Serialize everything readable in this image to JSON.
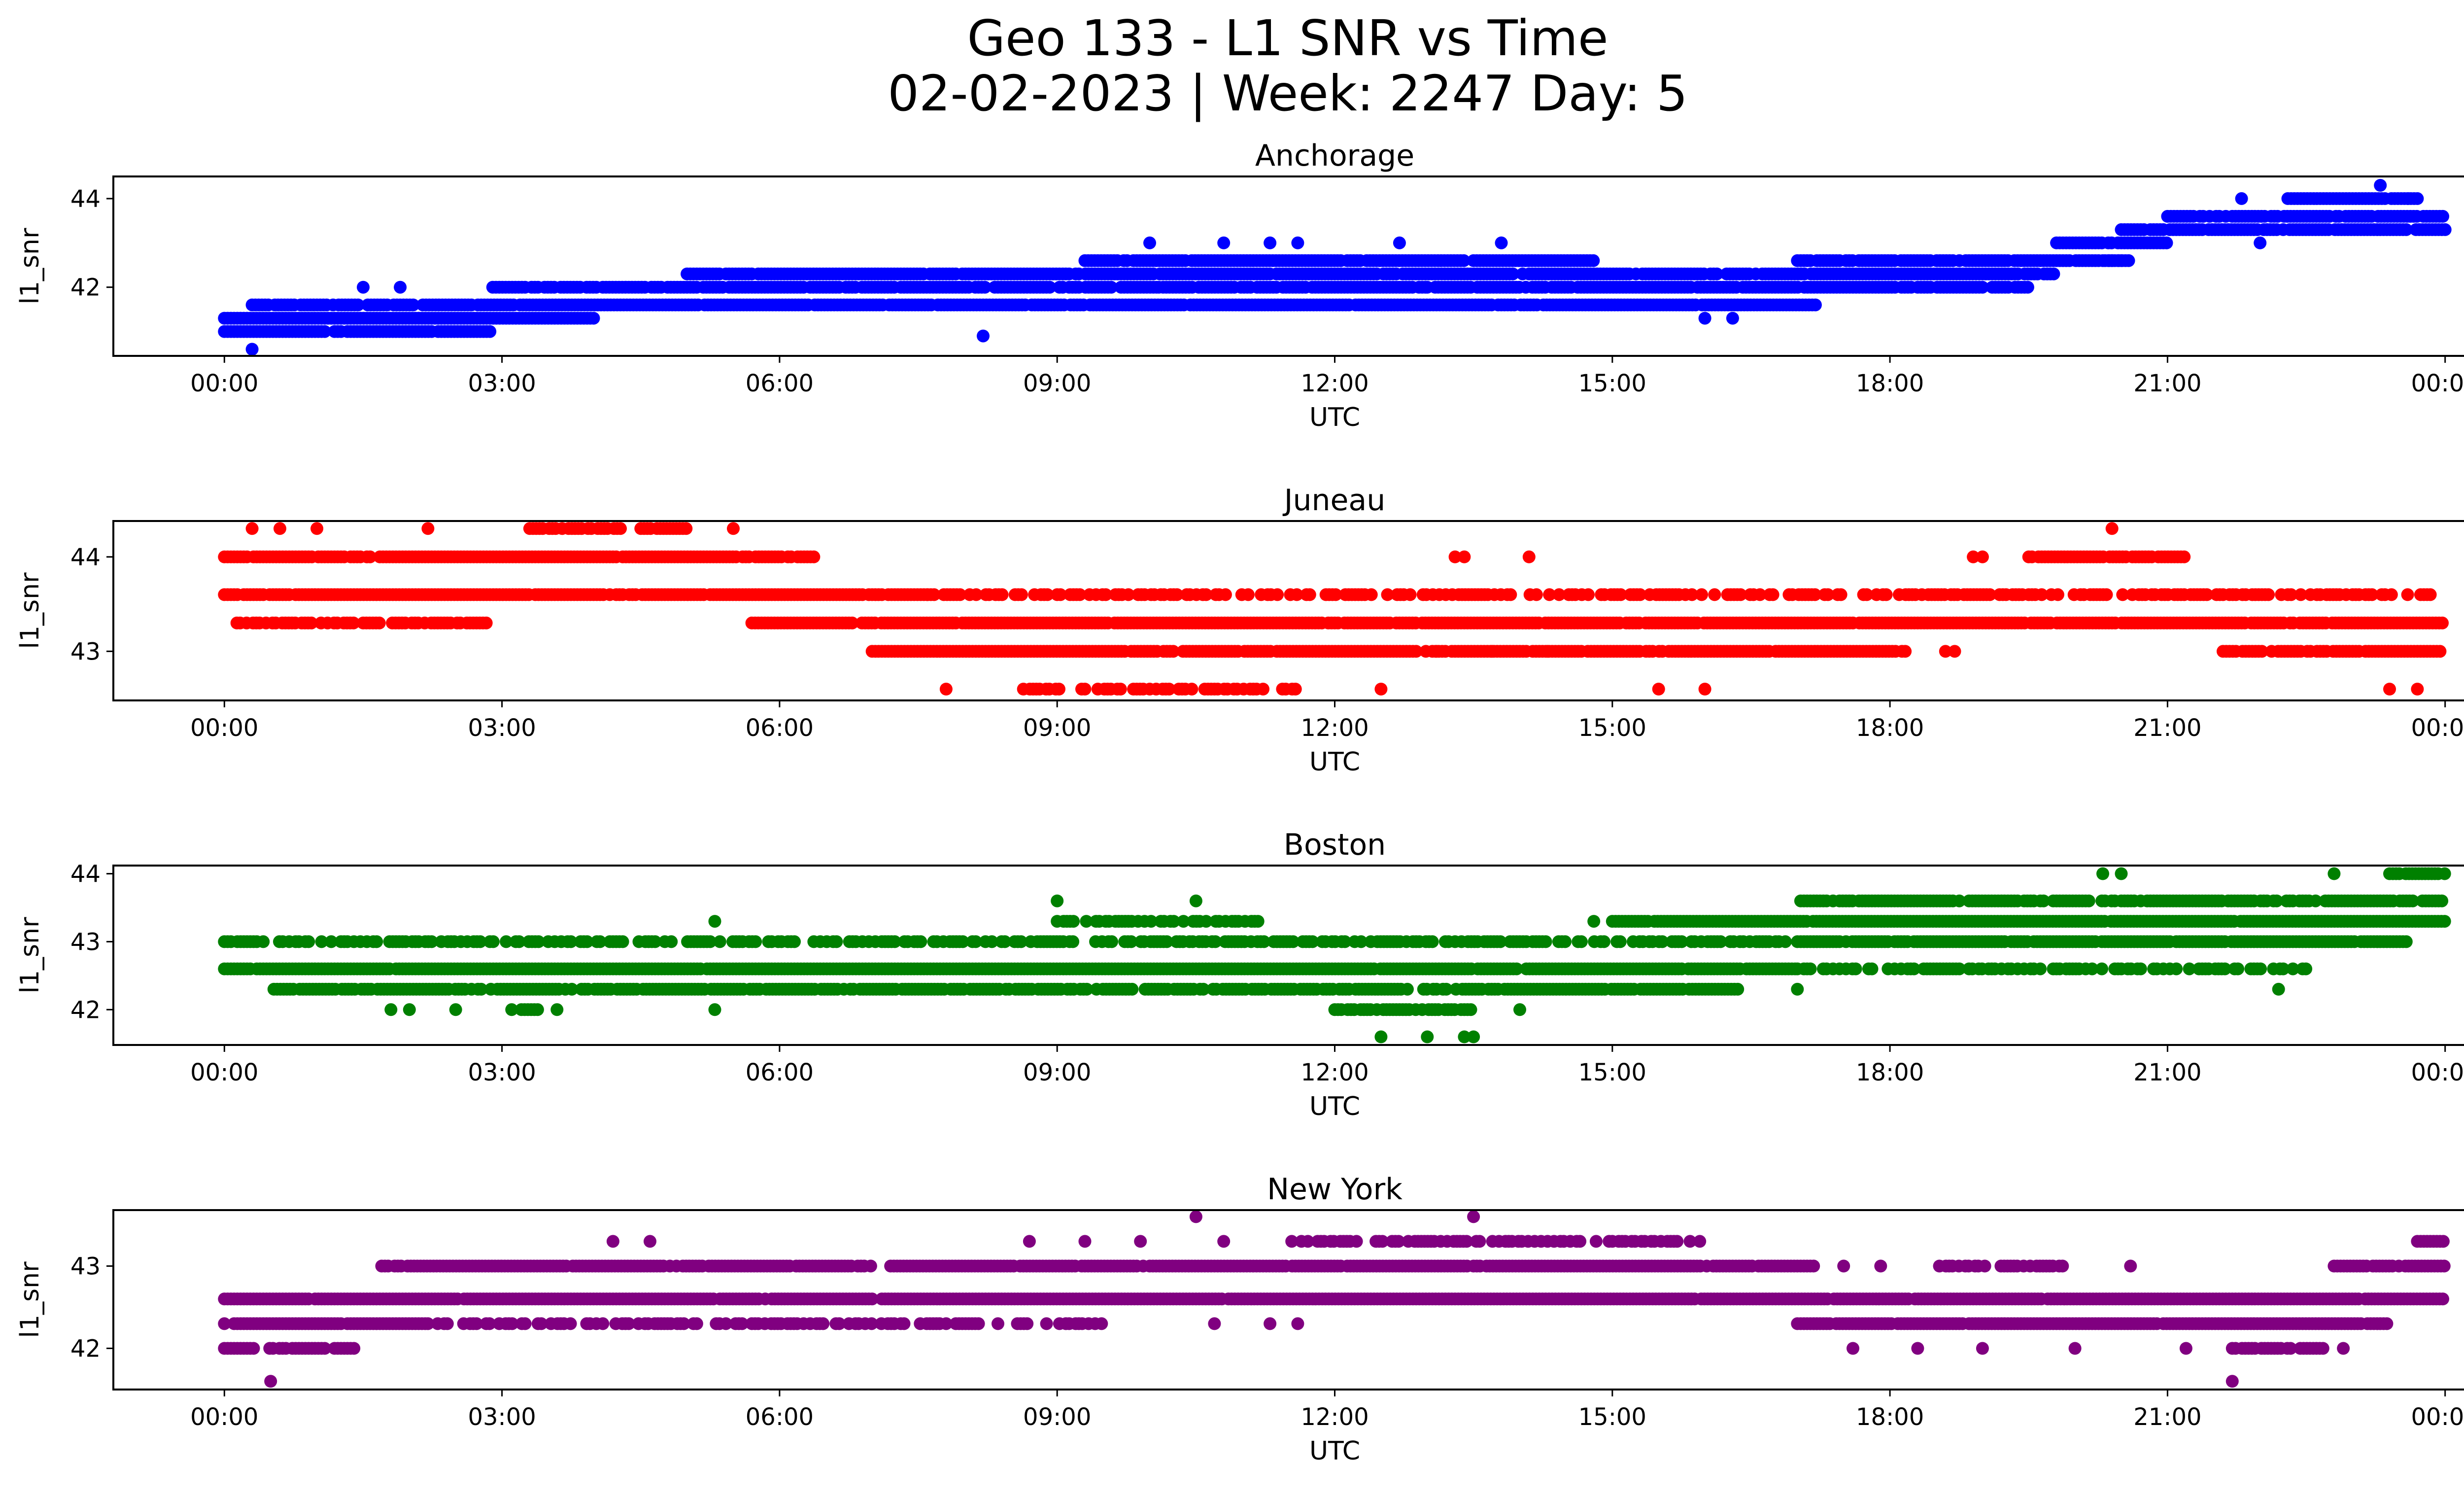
{
  "figure": {
    "title_line1": "Geo 133 - L1 SNR vs Time",
    "title_line2": "02-02-2023 | Week: 2247 Day: 5"
  },
  "x_tick_labels": [
    "00:00",
    "03:00",
    "06:00",
    "09:00",
    "12:00",
    "15:00",
    "18:00",
    "21:00",
    "00:00"
  ],
  "chart_data": [
    {
      "type": "scatter",
      "title": "Anchorage",
      "xlabel": "UTC",
      "ylabel": "l1_snr",
      "color": "#0000ff",
      "xlim": [
        -1.2,
        25.2
      ],
      "ylim": [
        40.45,
        44.5
      ],
      "yticks": [
        42,
        44
      ],
      "grid": false,
      "bands": [
        {
          "y": 41.0,
          "from": 0.0,
          "to": 2.9,
          "density": 0.9
        },
        {
          "y": 41.3,
          "from": 0.0,
          "to": 4.0,
          "density": 1.0
        },
        {
          "y": 41.6,
          "from": 0.3,
          "to": 1.2,
          "density": 0.8
        },
        {
          "y": 41.6,
          "from": 1.2,
          "to": 17.2,
          "density": 0.95
        },
        {
          "y": 42.0,
          "from": 2.9,
          "to": 19.5,
          "density": 0.9
        },
        {
          "y": 42.3,
          "from": 5.0,
          "to": 19.8,
          "density": 0.95
        },
        {
          "y": 42.6,
          "from": 9.3,
          "to": 14.8,
          "density": 0.95
        },
        {
          "y": 42.6,
          "from": 17.0,
          "to": 20.5,
          "density": 0.9
        },
        {
          "y": 43.0,
          "from": 19.8,
          "to": 21.0,
          "density": 0.95
        },
        {
          "y": 42.6,
          "from": 20.3,
          "to": 20.6,
          "density": 0.9
        },
        {
          "y": 43.3,
          "from": 20.5,
          "to": 24.0,
          "density": 0.95
        },
        {
          "y": 43.6,
          "from": 21.0,
          "to": 24.0,
          "density": 0.95
        },
        {
          "y": 44.0,
          "from": 22.3,
          "to": 23.7,
          "density": 0.95
        }
      ],
      "points": [
        [
          0.3,
          40.6
        ],
        [
          1.5,
          42.0
        ],
        [
          1.9,
          42.0
        ],
        [
          8.2,
          40.9
        ],
        [
          10.0,
          43.0
        ],
        [
          10.8,
          43.0
        ],
        [
          11.3,
          43.0
        ],
        [
          11.6,
          43.0
        ],
        [
          12.7,
          43.0
        ],
        [
          13.8,
          43.0
        ],
        [
          10.1,
          42.0
        ],
        [
          13.0,
          42.0
        ],
        [
          16.0,
          41.3
        ],
        [
          16.3,
          41.3
        ],
        [
          23.3,
          44.3
        ],
        [
          22.0,
          43.0
        ],
        [
          21.8,
          44.0
        ],
        [
          23.6,
          44.0
        ]
      ]
    },
    {
      "type": "scatter",
      "title": "Juneau",
      "xlabel": "UTC",
      "ylabel": "l1_snr",
      "color": "#ff0000",
      "xlim": [
        -1.2,
        25.2
      ],
      "ylim": [
        42.48,
        44.38
      ],
      "yticks": [
        43,
        44
      ],
      "grid": false,
      "bands": [
        {
          "y": 44.0,
          "from": 0.0,
          "to": 6.4,
          "density": 0.95
        },
        {
          "y": 43.6,
          "from": 0.0,
          "to": 7.6,
          "density": 0.95
        },
        {
          "y": 43.6,
          "from": 7.6,
          "to": 24.0,
          "density": 0.55
        },
        {
          "y": 43.3,
          "from": 0.1,
          "to": 2.9,
          "density": 0.8
        },
        {
          "y": 43.3,
          "from": 5.7,
          "to": 24.0,
          "density": 0.97
        },
        {
          "y": 43.0,
          "from": 7.0,
          "to": 18.2,
          "density": 0.95
        },
        {
          "y": 43.0,
          "from": 21.6,
          "to": 24.0,
          "density": 0.9
        },
        {
          "y": 44.0,
          "from": 19.5,
          "to": 21.2,
          "density": 0.8
        },
        {
          "y": 44.3,
          "from": 3.3,
          "to": 4.3,
          "density": 0.9
        },
        {
          "y": 44.3,
          "from": 4.5,
          "to": 5.0,
          "density": 0.9
        },
        {
          "y": 42.6,
          "from": 8.6,
          "to": 11.6,
          "density": 0.5
        }
      ],
      "points": [
        [
          0.3,
          44.3
        ],
        [
          0.6,
          44.3
        ],
        [
          1.0,
          44.3
        ],
        [
          2.2,
          44.3
        ],
        [
          5.5,
          44.3
        ],
        [
          20.4,
          44.3
        ],
        [
          7.8,
          42.6
        ],
        [
          12.5,
          42.6
        ],
        [
          15.5,
          42.6
        ],
        [
          16.0,
          42.6
        ],
        [
          23.4,
          42.6
        ],
        [
          23.7,
          42.6
        ],
        [
          13.3,
          44.0
        ],
        [
          13.4,
          44.0
        ],
        [
          14.1,
          44.0
        ],
        [
          18.9,
          44.0
        ],
        [
          19.0,
          44.0
        ],
        [
          18.6,
          43.0
        ],
        [
          18.7,
          43.0
        ],
        [
          14.3,
          43.0
        ],
        [
          13.7,
          43.0
        ],
        [
          13.1,
          43.0
        ]
      ]
    },
    {
      "type": "scatter",
      "title": "Boston",
      "xlabel": "UTC",
      "ylabel": "l1_snr",
      "color": "#008000",
      "xlim": [
        -1.2,
        25.2
      ],
      "ylim": [
        41.48,
        44.12
      ],
      "yticks": [
        42,
        43,
        44
      ],
      "grid": false,
      "bands": [
        {
          "y": 43.0,
          "from": 0.0,
          "to": 16.9,
          "density": 0.6
        },
        {
          "y": 42.6,
          "from": 0.0,
          "to": 17.0,
          "density": 0.99
        },
        {
          "y": 42.3,
          "from": 0.5,
          "to": 16.4,
          "density": 0.85
        },
        {
          "y": 42.0,
          "from": 3.0,
          "to": 3.6,
          "density": 0.5
        },
        {
          "y": 42.0,
          "from": 12.0,
          "to": 13.5,
          "density": 0.9
        },
        {
          "y": 43.0,
          "from": 17.0,
          "to": 23.6,
          "density": 0.95
        },
        {
          "y": 43.3,
          "from": 15.0,
          "to": 24.0,
          "density": 0.97
        },
        {
          "y": 43.6,
          "from": 17.0,
          "to": 24.0,
          "density": 0.8
        },
        {
          "y": 42.6,
          "from": 17.0,
          "to": 22.5,
          "density": 0.55
        },
        {
          "y": 43.3,
          "from": 9.0,
          "to": 11.2,
          "density": 0.55
        },
        {
          "y": 44.0,
          "from": 23.4,
          "to": 24.0,
          "density": 0.9
        }
      ],
      "points": [
        [
          1.8,
          42.0
        ],
        [
          2.0,
          42.0
        ],
        [
          2.5,
          42.0
        ],
        [
          5.3,
          42.0
        ],
        [
          5.3,
          43.3
        ],
        [
          9.0,
          43.6
        ],
        [
          10.5,
          43.6
        ],
        [
          12.5,
          41.6
        ],
        [
          13.0,
          41.6
        ],
        [
          13.4,
          41.6
        ],
        [
          13.5,
          41.6
        ],
        [
          14.0,
          42.0
        ],
        [
          14.8,
          43.3
        ],
        [
          17.0,
          42.3
        ],
        [
          20.3,
          44.0
        ],
        [
          20.5,
          44.0
        ],
        [
          22.8,
          44.0
        ],
        [
          22.2,
          42.3
        ]
      ]
    },
    {
      "type": "scatter",
      "title": "New York",
      "xlabel": "UTC",
      "ylabel": "l1_snr",
      "color": "#800080",
      "xlim": [
        -1.2,
        25.2
      ],
      "ylim": [
        41.5,
        43.68
      ],
      "yticks": [
        42,
        43
      ],
      "grid": false,
      "bands": [
        {
          "y": 42.6,
          "from": 0.0,
          "to": 24.0,
          "density": 0.97
        },
        {
          "y": 42.3,
          "from": 0.0,
          "to": 2.2,
          "density": 0.95
        },
        {
          "y": 42.3,
          "from": 2.2,
          "to": 9.5,
          "density": 0.5
        },
        {
          "y": 42.3,
          "from": 17.0,
          "to": 23.4,
          "density": 0.95
        },
        {
          "y": 42.0,
          "from": 0.0,
          "to": 1.4,
          "density": 0.85
        },
        {
          "y": 42.0,
          "from": 21.7,
          "to": 22.7,
          "density": 0.9
        },
        {
          "y": 43.0,
          "from": 1.7,
          "to": 7.0,
          "density": 0.95
        },
        {
          "y": 43.0,
          "from": 7.2,
          "to": 17.2,
          "density": 0.97
        },
        {
          "y": 43.0,
          "from": 18.5,
          "to": 20.0,
          "density": 0.5
        },
        {
          "y": 43.0,
          "from": 22.8,
          "to": 24.0,
          "density": 0.9
        },
        {
          "y": 43.3,
          "from": 11.5,
          "to": 16.0,
          "density": 0.55
        },
        {
          "y": 43.3,
          "from": 23.7,
          "to": 24.0,
          "density": 0.9
        }
      ],
      "points": [
        [
          0.5,
          41.6
        ],
        [
          21.7,
          41.6
        ],
        [
          10.5,
          43.6
        ],
        [
          13.5,
          43.6
        ],
        [
          4.2,
          43.3
        ],
        [
          4.6,
          43.3
        ],
        [
          8.7,
          43.3
        ],
        [
          9.3,
          43.3
        ],
        [
          9.9,
          43.3
        ],
        [
          10.8,
          43.3
        ],
        [
          17.5,
          43.0
        ],
        [
          17.9,
          43.0
        ],
        [
          20.6,
          43.0
        ],
        [
          17.6,
          42.0
        ],
        [
          18.3,
          42.0
        ],
        [
          19.0,
          42.0
        ],
        [
          20.0,
          42.0
        ],
        [
          21.2,
          42.0
        ],
        [
          22.9,
          42.0
        ],
        [
          10.7,
          42.3
        ],
        [
          11.3,
          42.3
        ],
        [
          11.6,
          42.3
        ]
      ]
    }
  ]
}
